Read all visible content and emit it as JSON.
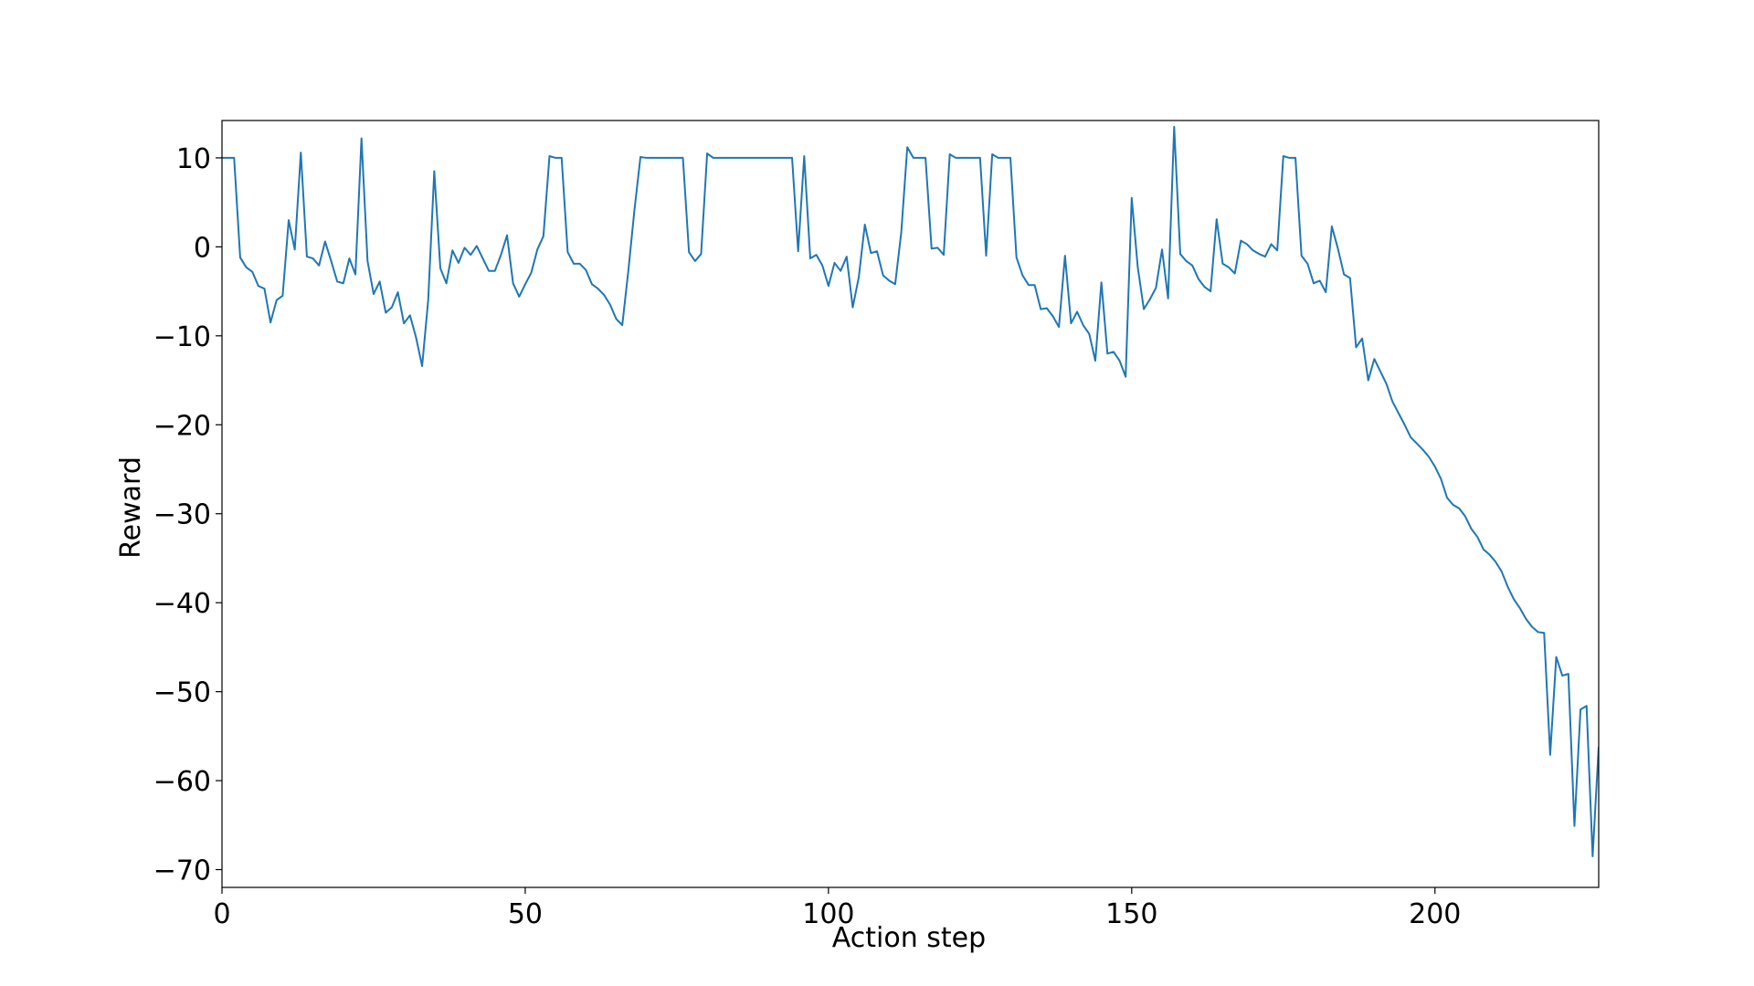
{
  "chart_data": {
    "type": "line",
    "title": "",
    "xlabel": "Action step",
    "ylabel": "Reward",
    "xlim": [
      0,
      227
    ],
    "ylim": [
      -72,
      14.2
    ],
    "grid": false,
    "xticks": [
      0,
      50,
      100,
      150,
      200
    ],
    "yticks": [
      10,
      0,
      -10,
      -20,
      -30,
      -40,
      -50,
      -60,
      -70
    ],
    "x_tick_labels": [
      "0",
      "50",
      "100",
      "150",
      "200"
    ],
    "y_tick_labels": [
      "10",
      "0",
      "−10",
      "−20",
      "−30",
      "−40",
      "−50",
      "−60",
      "−70"
    ],
    "series": [
      {
        "color": "#1f77b4",
        "x": [
          0,
          1,
          2,
          3,
          4,
          5,
          6,
          7,
          8,
          9,
          10,
          11,
          12,
          13,
          14,
          15,
          16,
          17,
          18,
          19,
          20,
          21,
          22,
          23,
          24,
          25,
          26,
          27,
          28,
          29,
          30,
          31,
          32,
          33,
          34,
          35,
          36,
          37,
          38,
          39,
          40,
          41,
          42,
          43,
          44,
          45,
          46,
          47,
          48,
          49,
          50,
          51,
          52,
          53,
          54,
          55,
          56,
          57,
          58,
          59,
          60,
          61,
          62,
          63,
          64,
          65,
          66,
          67,
          68,
          69,
          70,
          71,
          72,
          73,
          74,
          75,
          76,
          77,
          78,
          79,
          80,
          81,
          82,
          83,
          84,
          85,
          86,
          87,
          88,
          89,
          90,
          91,
          92,
          93,
          94,
          95,
          96,
          97,
          98,
          99,
          100,
          101,
          102,
          103,
          104,
          105,
          106,
          107,
          108,
          109,
          110,
          111,
          112,
          113,
          114,
          115,
          116,
          117,
          118,
          119,
          120,
          121,
          122,
          123,
          124,
          125,
          126,
          127,
          128,
          129,
          130,
          131,
          132,
          133,
          134,
          135,
          136,
          137,
          138,
          139,
          140,
          141,
          142,
          143,
          144,
          145,
          146,
          147,
          148,
          149,
          150,
          151,
          152,
          153,
          154,
          155,
          156,
          157,
          158,
          159,
          160,
          161,
          162,
          163,
          164,
          165,
          166,
          167,
          168,
          169,
          170,
          171,
          172,
          173,
          174,
          175,
          176,
          177,
          178,
          179,
          180,
          181,
          182,
          183,
          184,
          185,
          186,
          187,
          188,
          189,
          190,
          191,
          192,
          193,
          194,
          195,
          196,
          197,
          198,
          199,
          200,
          201,
          202,
          203,
          204,
          205,
          206,
          207,
          208,
          209,
          210,
          211,
          212,
          213,
          214,
          215,
          216,
          217,
          218,
          219,
          220,
          221,
          222,
          223,
          224,
          225,
          226,
          227
        ],
        "y": [
          10,
          10,
          10,
          -1.2,
          -2.3,
          -2.8,
          -4.4,
          -4.7,
          -8.5,
          -6,
          -5.5,
          3,
          -0.3,
          10.6,
          -1.1,
          -1.3,
          -2.1,
          0.6,
          -1.6,
          -3.9,
          -4.1,
          -1.3,
          -3.1,
          12.2,
          -1.6,
          -5.3,
          -3.9,
          -7.4,
          -6.8,
          -5.1,
          -8.6,
          -7.7,
          -10.2,
          -13.4,
          -6,
          8.5,
          -2.4,
          -4.1,
          -0.4,
          -1.8,
          -0.1,
          -0.9,
          0.1,
          -1.3,
          -2.7,
          -2.7,
          -0.9,
          1.3,
          -4.1,
          -5.6,
          -4.2,
          -2.9,
          -0.3,
          1.2,
          10.2,
          10,
          10,
          -0.6,
          -1.9,
          -1.9,
          -2.6,
          -4.2,
          -4.7,
          -5.4,
          -6.5,
          -8.1,
          -8.8,
          -2.7,
          4.1,
          10.1,
          10,
          10,
          10,
          10,
          10,
          10,
          10,
          -0.6,
          -1.6,
          -0.8,
          10.5,
          10,
          10,
          10,
          10,
          10,
          10,
          10,
          10,
          10,
          10,
          10,
          10,
          10,
          10,
          -0.5,
          10.2,
          -1.3,
          -0.9,
          -2.1,
          -4.4,
          -1.8,
          -2.7,
          -1.1,
          -6.8,
          -3.4,
          2.5,
          -0.7,
          -0.5,
          -3.2,
          -3.8,
          -4.2,
          1.6,
          11.2,
          10,
          10,
          10,
          -0.2,
          -0.1,
          -0.9,
          10.4,
          10,
          10,
          10,
          10,
          10,
          -1,
          10.4,
          10,
          10,
          10,
          -1.2,
          -3.2,
          -4.3,
          -4.3,
          -7,
          -6.9,
          -7.8,
          -9,
          -1,
          -8.6,
          -7.3,
          -8.8,
          -9.8,
          -12.8,
          -4,
          -12,
          -11.8,
          -12.8,
          -14.6,
          5.5,
          -2.3,
          -7,
          -5.9,
          -4.6,
          -0.3,
          -5.8,
          13.5,
          -0.8,
          -1.6,
          -2.1,
          -3.6,
          -4.5,
          -5,
          3.1,
          -1.9,
          -2.3,
          -3,
          0.7,
          0.3,
          -0.4,
          -0.8,
          -1.1,
          0.3,
          -0.4,
          10.2,
          10,
          10,
          -1,
          -1.9,
          -4.1,
          -3.8,
          -5.1,
          2.3,
          -0.2,
          -3.1,
          -3.5,
          -11.3,
          -10.3,
          -15,
          -12.6,
          -14,
          -15.4,
          -17.4,
          -18.7,
          -20,
          -21.4,
          -22.1,
          -22.8,
          -23.6,
          -24.7,
          -26.1,
          -28.2,
          -29,
          -29.4,
          -30.3,
          -31.7,
          -32.6,
          -34,
          -34.6,
          -35.4,
          -36.5,
          -38.2,
          -39.6,
          -40.6,
          -41.8,
          -42.7,
          -43.3,
          -43.4,
          -57.1,
          -46.1,
          -48.2,
          -48,
          -65.1,
          -52,
          -51.6,
          -68.5,
          -56.2
        ]
      }
    ]
  }
}
